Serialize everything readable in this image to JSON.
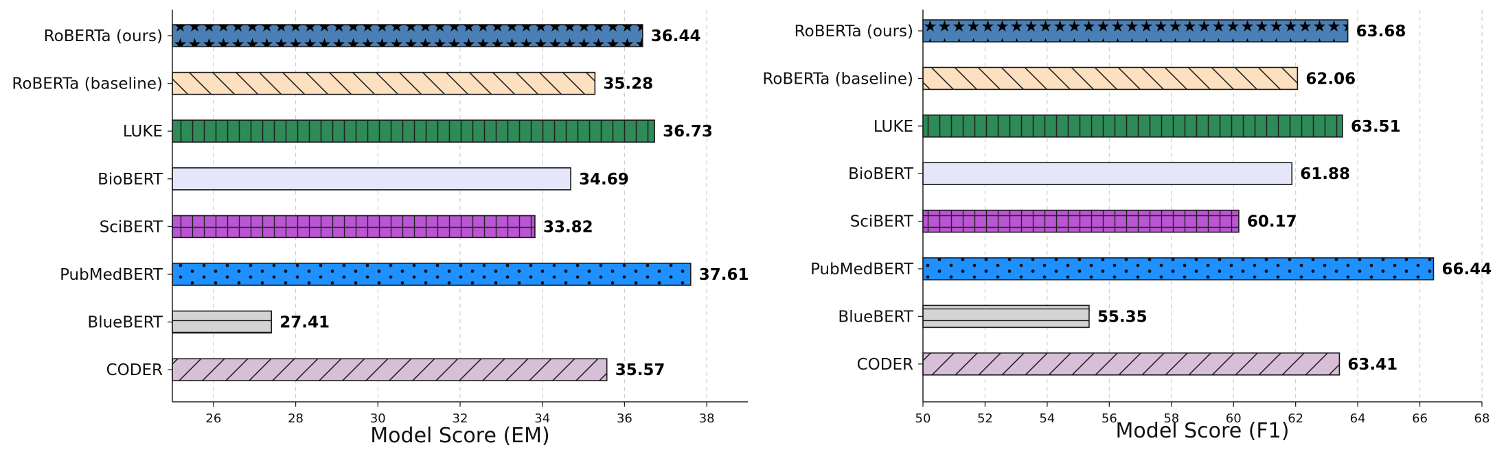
{
  "chart_data": [
    {
      "type": "bar",
      "orientation": "horizontal",
      "xlabel": "Model Score (EM)",
      "ylabel": "",
      "xlim": [
        25,
        39
      ],
      "xticks": [
        26,
        28,
        30,
        32,
        34,
        36,
        38
      ],
      "grid": "vertical dashed",
      "categories": [
        "RoBERTa (ours)",
        "RoBERTa (baseline)",
        "LUKE",
        "BioBERT",
        "SciBERT",
        "PubMedBERT",
        "BlueBERT",
        "CODER"
      ],
      "values": [
        36.44,
        35.28,
        36.73,
        34.69,
        33.82,
        37.61,
        27.41,
        35.57
      ],
      "value_labels": [
        "36.44",
        "35.28",
        "36.73",
        "34.69",
        "33.82",
        "37.61",
        "27.41",
        "35.57"
      ]
    },
    {
      "type": "bar",
      "orientation": "horizontal",
      "xlabel": "Model Score (F1)",
      "ylabel": "",
      "xlim": [
        50,
        68
      ],
      "xticks": [
        50,
        52,
        54,
        56,
        58,
        60,
        62,
        64,
        66,
        68
      ],
      "grid": "vertical dashed",
      "categories": [
        "RoBERTa (ours)",
        "RoBERTa (baseline)",
        "LUKE",
        "BioBERT",
        "SciBERT",
        "PubMedBERT",
        "BlueBERT",
        "CODER"
      ],
      "values": [
        63.68,
        62.06,
        63.51,
        61.88,
        60.17,
        66.44,
        55.35,
        63.41
      ],
      "value_labels": [
        "63.68",
        "62.06",
        "63.51",
        "61.88",
        "60.17",
        "66.44",
        "55.35",
        "63.41"
      ]
    }
  ],
  "bar_styles": [
    {
      "color": "#4a7fb5",
      "hatch": "stars"
    },
    {
      "color": "#fde0c0",
      "hatch": "backslash"
    },
    {
      "color": "#2e8b57",
      "hatch": "vertical"
    },
    {
      "color": "#e6e6fa",
      "hatch": "none"
    },
    {
      "color": "#ba55d3",
      "hatch": "grid"
    },
    {
      "color": "#1e90ff",
      "hatch": "dots"
    },
    {
      "color": "#d3d3d3",
      "hatch": "horizontal"
    },
    {
      "color": "#d8bfd8",
      "hatch": "slash"
    }
  ]
}
